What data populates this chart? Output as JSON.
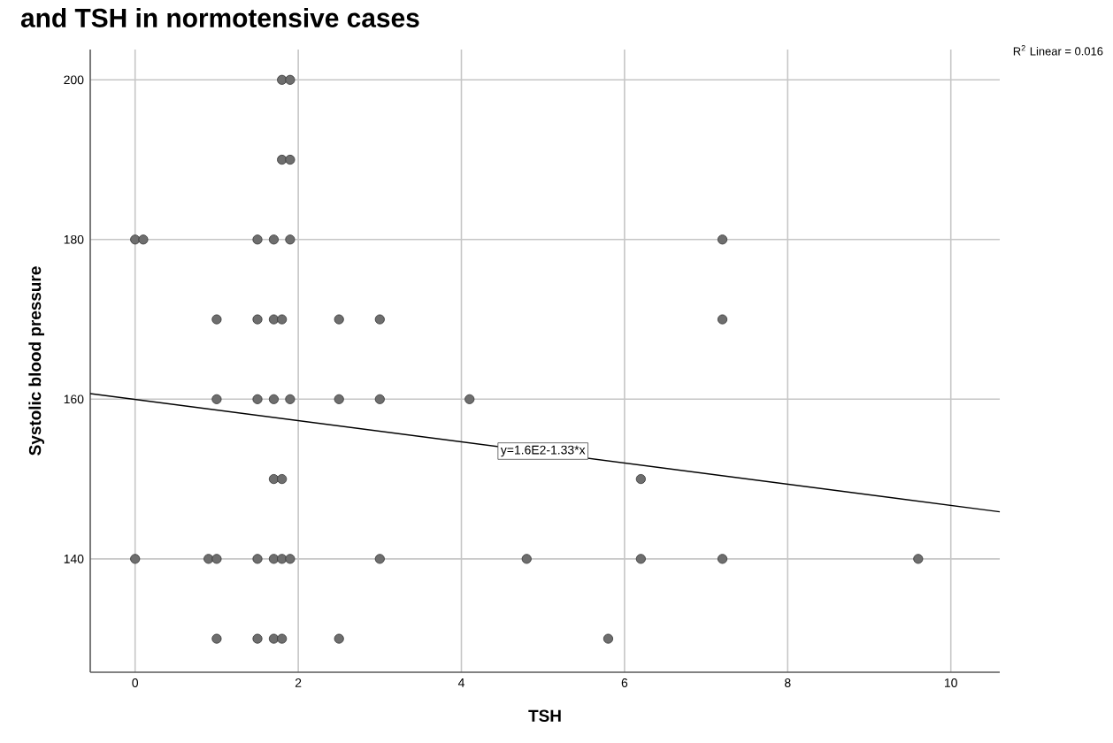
{
  "chart_data": {
    "type": "scatter",
    "title": "and TSH in normotensive cases",
    "xlabel": "TSH",
    "ylabel": "Systolic blood pressure",
    "xlim": [
      -0.55,
      10.6
    ],
    "ylim": [
      125.8,
      203.8
    ],
    "xticks": [
      0,
      2,
      4,
      6,
      8,
      10
    ],
    "yticks": [
      140,
      160,
      180,
      200
    ],
    "grid": true,
    "annotations": [
      "R$^{2}$ Linear = 0.016",
      {
        "text": "y=1.6E2-1.33*x",
        "x": 5.0,
        "y": 153.5
      }
    ],
    "series": [
      {
        "color": "#6e6e6e",
        "marker": "circle",
        "x": [
          1.8,
          1.9,
          1.8,
          1.9,
          0,
          0.1,
          1.5,
          1.7,
          1.9,
          7.2,
          1.0,
          1.5,
          1.7,
          1.8,
          2.5,
          3.0,
          7.2,
          1.0,
          1.5,
          1.7,
          1.9,
          2.5,
          3.0,
          4.1,
          1.7,
          1.8,
          6.2,
          0,
          0.9,
          1.0,
          1.5,
          1.7,
          1.8,
          1.9,
          3.0,
          4.8,
          6.2,
          7.2,
          9.6,
          1.0,
          1.5,
          1.7,
          1.8,
          2.5,
          5.8
        ],
        "values": [
          200,
          200,
          190,
          190,
          180,
          180,
          180,
          180,
          180,
          180,
          170,
          170,
          170,
          170,
          170,
          170,
          170,
          160,
          160,
          160,
          160,
          160,
          160,
          160,
          150,
          150,
          150,
          140,
          140,
          140,
          140,
          140,
          140,
          140,
          140,
          140,
          140,
          140,
          140,
          130,
          130,
          130,
          130,
          130,
          130
        ]
      },
      {
        "type": "line",
        "color": "#000000",
        "marker": "none",
        "x": [
          -0.55,
          10.6
        ],
        "values": [
          160.7,
          145.9
        ]
      }
    ]
  }
}
